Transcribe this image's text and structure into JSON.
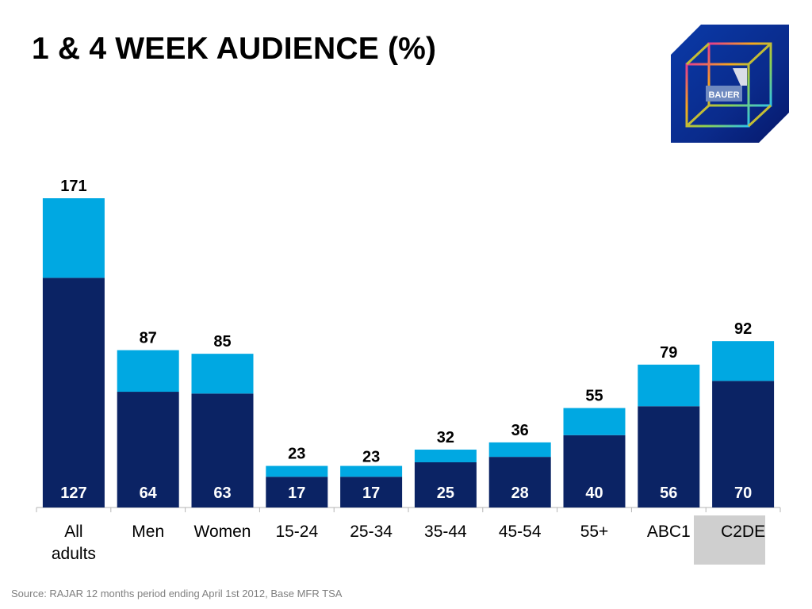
{
  "title": "1 & 4 WEEK AUDIENCE (%)",
  "logo": {
    "text": "BAUER",
    "icon": "bauer-cube-logo"
  },
  "source": "Source: RAJAR 12 months period ending April 1st 2012, Base MFR TSA",
  "colors": {
    "week1": "#0b2364",
    "week4_extra": "#00a8e2",
    "logo_bg": "#0a2b8c"
  },
  "chart_data": {
    "type": "bar",
    "stacked": true,
    "categories": [
      "All\nadults",
      "Men",
      "Women",
      "15-24",
      "25-34",
      "35-44",
      "45-54",
      "55+",
      "ABC1",
      "C2DE"
    ],
    "series": [
      {
        "values": [
          127,
          64,
          63,
          17,
          17,
          25,
          28,
          40,
          56,
          70
        ]
      },
      {
        "values": [
          44,
          23,
          22,
          6,
          6,
          7,
          8,
          15,
          23,
          22
        ]
      }
    ],
    "totals": [
      171,
      87,
      85,
      23,
      23,
      32,
      36,
      55,
      79,
      92
    ],
    "inner_labels": [
      "127",
      "64",
      "63",
      "17",
      "17",
      "25",
      "28",
      "40",
      "56",
      "70"
    ],
    "total_labels": [
      "171",
      "87",
      "85",
      "23",
      "23",
      "32",
      "36",
      "55",
      "79",
      "92"
    ],
    "ylim": [
      0,
      171
    ],
    "grid": false,
    "legend": "none"
  }
}
